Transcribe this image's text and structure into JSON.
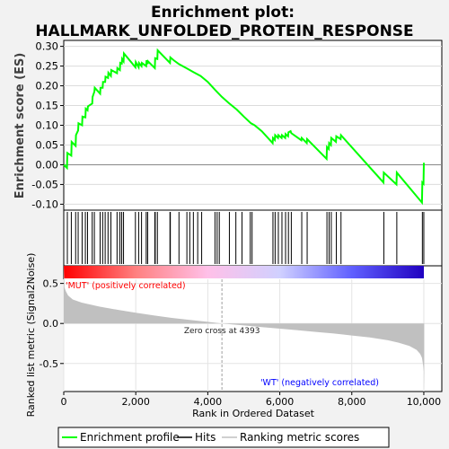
{
  "title_line1": "Enrichment plot:",
  "title_line2": "HALLMARK_UNFOLDED_PROTEIN_RESPONSE",
  "colors": {
    "enrichment_line": "#00ff00",
    "hits": "#000000",
    "ranking_fill": "#c0c0c0",
    "zero_cross_line": "#a0a0a0",
    "pos_label": "#ff0000",
    "neg_label": "#0000ff",
    "gradient_stops": [
      "#ff0000",
      "#ff8080",
      "#ffc0e8",
      "#d0d0ff",
      "#6060ff",
      "#2000c0"
    ]
  },
  "chart_data": [
    {
      "type": "line",
      "name": "enrichment-profile",
      "ylabel": "Enrichment score (ES)",
      "xlim": [
        0,
        10500
      ],
      "ylim": [
        -0.115,
        0.315
      ],
      "yticks": [
        -0.1,
        -0.05,
        0.0,
        0.05,
        0.1,
        0.15,
        0.2,
        0.25,
        0.3
      ],
      "ytick_labels": [
        "-0.10",
        "-0.05",
        "0.00",
        "0.05",
        "0.10",
        "0.15",
        "0.20",
        "0.25",
        "0.30"
      ],
      "grid": true,
      "x": [
        0,
        90,
        100,
        210,
        220,
        330,
        340,
        400,
        410,
        510,
        520,
        600,
        610,
        660,
        670,
        790,
        800,
        850,
        860,
        1010,
        1020,
        1080,
        1090,
        1150,
        1160,
        1230,
        1240,
        1310,
        1320,
        1480,
        1490,
        1560,
        1570,
        1610,
        1620,
        1660,
        1670,
        1990,
        2000,
        2080,
        2090,
        2160,
        2170,
        2290,
        2300,
        2330,
        2340,
        2530,
        2540,
        2600,
        2610,
        2950,
        2960,
        3050,
        3200,
        3400,
        3600,
        3800,
        4000,
        4200,
        4393,
        4600,
        4800,
        5000,
        5200,
        5300,
        5500,
        5800,
        5810,
        5860,
        5870,
        5950,
        5960,
        6050,
        6060,
        6150,
        6160,
        6230,
        6240,
        6300,
        6320,
        6600,
        6610,
        6750,
        6760,
        7300,
        7310,
        7360,
        7370,
        7420,
        7430,
        7560,
        7570,
        7690,
        7700,
        8880,
        8890,
        9240,
        9250,
        9950,
        9960,
        9990,
        10000,
        10001
      ],
      "values": [
        0.0,
        -0.008,
        0.03,
        0.023,
        0.058,
        0.048,
        0.075,
        0.087,
        0.105,
        0.1,
        0.122,
        0.12,
        0.142,
        0.138,
        0.148,
        0.155,
        0.172,
        0.185,
        0.195,
        0.18,
        0.195,
        0.195,
        0.21,
        0.21,
        0.223,
        0.22,
        0.233,
        0.225,
        0.24,
        0.232,
        0.245,
        0.24,
        0.258,
        0.256,
        0.268,
        0.262,
        0.282,
        0.247,
        0.26,
        0.247,
        0.258,
        0.25,
        0.258,
        0.25,
        0.265,
        0.255,
        0.262,
        0.245,
        0.27,
        0.268,
        0.29,
        0.258,
        0.272,
        0.265,
        0.255,
        0.245,
        0.235,
        0.225,
        0.21,
        0.19,
        0.172,
        0.155,
        0.14,
        0.122,
        0.105,
        0.1,
        0.085,
        0.055,
        0.068,
        0.063,
        0.075,
        0.068,
        0.075,
        0.068,
        0.075,
        0.068,
        0.078,
        0.072,
        0.082,
        0.085,
        0.08,
        0.062,
        0.068,
        0.055,
        0.065,
        0.015,
        0.045,
        0.04,
        0.055,
        0.05,
        0.068,
        0.058,
        0.072,
        0.065,
        0.075,
        -0.045,
        -0.02,
        -0.05,
        -0.02,
        -0.096,
        -0.045,
        -0.048,
        0.005,
        0.002
      ]
    },
    {
      "type": "heatmap",
      "name": "hits",
      "hit_ranks": [
        100,
        210,
        330,
        400,
        510,
        600,
        660,
        790,
        850,
        1010,
        1080,
        1150,
        1230,
        1310,
        1480,
        1560,
        1610,
        1660,
        1990,
        2080,
        2160,
        2290,
        2330,
        2530,
        2540,
        2600,
        2950,
        2960,
        3200,
        3420,
        3500,
        3600,
        3720,
        3830,
        4200,
        4260,
        4320,
        4600,
        4780,
        4950,
        5180,
        5230,
        5810,
        5870,
        5960,
        6060,
        6160,
        6240,
        6320,
        6610,
        6760,
        7310,
        7370,
        7430,
        7570,
        7700,
        8890,
        9250,
        9960,
        10000
      ]
    },
    {
      "type": "area",
      "name": "ranking-metric",
      "xlabel": "Rank in Ordered Dataset",
      "ylabel": "Ranked list metric (Signal2Noise)",
      "xlim": [
        0,
        10500
      ],
      "ylim": [
        -0.85,
        0.72
      ],
      "yticks": [
        -0.5,
        0.0,
        0.5
      ],
      "ytick_labels": [
        "-0.5",
        "0.0",
        "0.5"
      ],
      "xticks": [
        0,
        2000,
        4000,
        6000,
        8000,
        10000
      ],
      "xtick_labels": [
        "0",
        "2,000",
        "4,000",
        "6,000",
        "8,000",
        "10,000"
      ],
      "grid": true,
      "x": [
        0,
        20,
        60,
        120,
        250,
        500,
        1000,
        1500,
        2000,
        2500,
        3000,
        3500,
        4000,
        4393,
        5000,
        5500,
        6000,
        6500,
        7000,
        7500,
        8000,
        8500,
        9000,
        9300,
        9600,
        9800,
        9900,
        9950,
        9980,
        10000,
        10010
      ],
      "values": [
        0.72,
        0.45,
        0.4,
        0.35,
        0.3,
        0.26,
        0.21,
        0.17,
        0.135,
        0.1,
        0.07,
        0.045,
        0.02,
        0.0,
        -0.025,
        -0.045,
        -0.065,
        -0.085,
        -0.105,
        -0.125,
        -0.15,
        -0.175,
        -0.21,
        -0.24,
        -0.28,
        -0.33,
        -0.38,
        -0.43,
        -0.52,
        -0.6,
        -0.85
      ],
      "zero_cross_rank": 4393,
      "annotation_zero": "Zero cross at 4393",
      "label_pos": "'MUT' (positively correlated)",
      "label_neg": "'WT' (negatively correlated)"
    }
  ],
  "legend": {
    "placement": "bottom",
    "items": [
      {
        "label": "Enrichment profile",
        "color": "#00ff00"
      },
      {
        "label": "Hits",
        "color": "#000000"
      },
      {
        "label": "Ranking metric scores",
        "color": "#c0c0c0"
      }
    ]
  }
}
